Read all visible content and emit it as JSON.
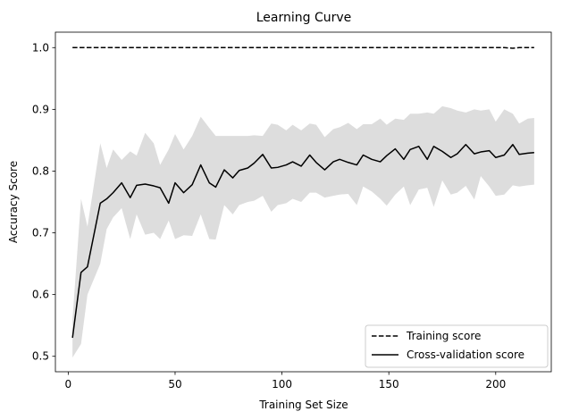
{
  "chart_data": {
    "type": "line",
    "title": "Learning Curve",
    "xlabel": "Training Set Size",
    "ylabel": "Accuracy Score",
    "xlim": [
      -6,
      226
    ],
    "ylim": [
      0.475,
      1.025
    ],
    "xticks": [
      0,
      50,
      100,
      150,
      200
    ],
    "yticks": [
      0.5,
      0.6,
      0.7,
      0.8,
      0.9,
      1.0
    ],
    "ytick_labels": [
      "0.5",
      "0.6",
      "0.7",
      "0.8",
      "0.9",
      "1.0"
    ],
    "grid": false,
    "legend_position": "lower-right",
    "x": [
      2,
      6,
      9,
      15,
      18,
      21,
      25,
      29,
      32,
      36,
      40,
      43,
      47,
      50,
      54,
      58,
      62,
      66,
      69,
      73,
      77,
      80,
      84,
      87,
      91,
      95,
      98,
      102,
      105,
      109,
      113,
      116,
      120,
      124,
      127,
      131,
      135,
      138,
      142,
      146,
      149,
      153,
      157,
      160,
      164,
      168,
      171,
      175,
      179,
      182,
      186,
      190,
      193,
      197,
      200,
      204,
      208,
      211,
      215,
      218
    ],
    "series": [
      {
        "name": "Training score",
        "style": "dashed",
        "color": "#000000",
        "values": [
          1.0,
          1.0,
          1.0,
          1.0,
          1.0,
          1.0,
          1.0,
          1.0,
          1.0,
          1.0,
          1.0,
          1.0,
          1.0,
          1.0,
          1.0,
          1.0,
          1.0,
          1.0,
          1.0,
          1.0,
          1.0,
          1.0,
          1.0,
          1.0,
          1.0,
          1.0,
          1.0,
          1.0,
          1.0,
          1.0,
          1.0,
          1.0,
          1.0,
          1.0,
          1.0,
          1.0,
          1.0,
          1.0,
          1.0,
          1.0,
          1.0,
          1.0,
          1.0,
          1.0,
          1.0,
          1.0,
          1.0,
          1.0,
          1.0,
          1.0,
          1.0,
          1.0,
          1.0,
          1.0,
          1.0,
          1.0,
          0.999,
          1.0,
          1.0,
          1.0
        ]
      },
      {
        "name": "Cross-validation score",
        "style": "solid",
        "color": "#000000",
        "values": [
          0.53,
          0.636,
          0.645,
          0.748,
          0.755,
          0.765,
          0.781,
          0.757,
          0.777,
          0.779,
          0.776,
          0.773,
          0.748,
          0.781,
          0.765,
          0.778,
          0.81,
          0.781,
          0.774,
          0.802,
          0.789,
          0.801,
          0.805,
          0.813,
          0.827,
          0.805,
          0.806,
          0.81,
          0.815,
          0.808,
          0.826,
          0.814,
          0.802,
          0.815,
          0.819,
          0.814,
          0.81,
          0.826,
          0.819,
          0.815,
          0.825,
          0.836,
          0.819,
          0.835,
          0.84,
          0.819,
          0.84,
          0.832,
          0.822,
          0.828,
          0.843,
          0.828,
          0.831,
          0.833,
          0.822,
          0.826,
          0.843,
          0.827,
          0.829,
          0.83
        ]
      }
    ],
    "band": {
      "color": "#dddddd",
      "lower": [
        0.498,
        0.52,
        0.6,
        0.65,
        0.706,
        0.725,
        0.74,
        0.69,
        0.73,
        0.697,
        0.7,
        0.69,
        0.72,
        0.69,
        0.696,
        0.695,
        0.73,
        0.69,
        0.689,
        0.745,
        0.73,
        0.745,
        0.75,
        0.752,
        0.76,
        0.734,
        0.745,
        0.748,
        0.755,
        0.75,
        0.765,
        0.765,
        0.757,
        0.76,
        0.762,
        0.763,
        0.745,
        0.775,
        0.767,
        0.755,
        0.744,
        0.762,
        0.775,
        0.745,
        0.77,
        0.773,
        0.742,
        0.785,
        0.762,
        0.765,
        0.776,
        0.754,
        0.792,
        0.775,
        0.76,
        0.762,
        0.777,
        0.775,
        0.777,
        0.778
      ],
      "upper": [
        0.56,
        0.755,
        0.71,
        0.845,
        0.805,
        0.835,
        0.818,
        0.832,
        0.825,
        0.862,
        0.845,
        0.81,
        0.835,
        0.86,
        0.835,
        0.857,
        0.888,
        0.87,
        0.857,
        0.857,
        0.857,
        0.857,
        0.857,
        0.858,
        0.857,
        0.877,
        0.875,
        0.866,
        0.875,
        0.866,
        0.877,
        0.875,
        0.855,
        0.868,
        0.871,
        0.878,
        0.868,
        0.876,
        0.876,
        0.885,
        0.875,
        0.885,
        0.883,
        0.893,
        0.893,
        0.895,
        0.893,
        0.905,
        0.902,
        0.898,
        0.895,
        0.9,
        0.898,
        0.9,
        0.88,
        0.9,
        0.893,
        0.877,
        0.885,
        0.886
      ]
    }
  }
}
